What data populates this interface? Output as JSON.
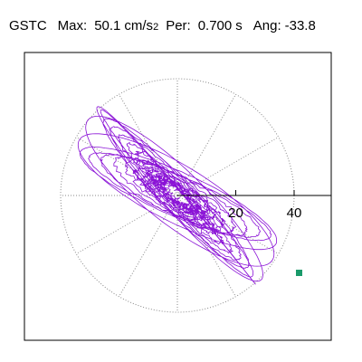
{
  "header": {
    "station": "GSTC",
    "max_label": "Max:",
    "max_value": "50.1",
    "max_unit": "cm/s",
    "max_unit_exp": "2",
    "per_label": "Per:",
    "per_value": "0.700",
    "per_unit": "s",
    "ang_label": "Ang:",
    "ang_value": "-33.8"
  },
  "chart_data": {
    "type": "polar-scatter",
    "title": "GSTC  Max: 50.1 cm/s2  Per: 0.700 s  Ang: -33.8",
    "radial_ticks": [
      20,
      40
    ],
    "radial_max": 40,
    "spoke_step_deg": 30,
    "grid": true,
    "peak": {
      "magnitude": 50.1,
      "angle_deg": -33.8,
      "unit": "cm/s2"
    },
    "period_s": 0.7,
    "colors": {
      "trace": "#8a12d6",
      "grid": "#888888",
      "marker": "#1a9a6a",
      "axis": "#000000"
    }
  }
}
